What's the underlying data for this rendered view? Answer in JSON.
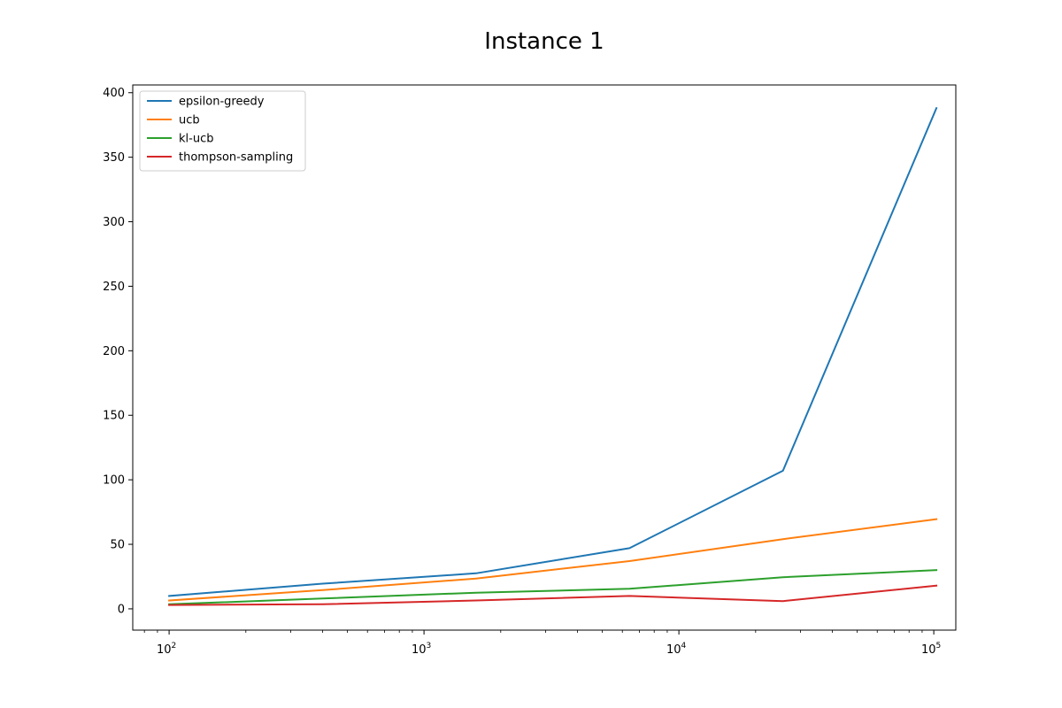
{
  "chart_data": {
    "type": "line",
    "title": "Instance 1",
    "xlabel": "",
    "ylabel": "",
    "xscale": "log",
    "xlim": [
      72,
      122000
    ],
    "ylim": [
      -16.5,
      406
    ],
    "x": [
      100,
      400,
      1600,
      6400,
      25600,
      102400
    ],
    "x_ticks": [
      {
        "value": 100,
        "base": "10",
        "exp": "2"
      },
      {
        "value": 1000,
        "base": "10",
        "exp": "3"
      },
      {
        "value": 10000,
        "base": "10",
        "exp": "4"
      },
      {
        "value": 100000,
        "base": "10",
        "exp": "5"
      }
    ],
    "y_ticks": [
      0,
      50,
      100,
      150,
      200,
      250,
      300,
      350,
      400
    ],
    "grid": false,
    "legend_position": "top-left",
    "series": [
      {
        "name": "epsilon-greedy",
        "color": "#1f77b4",
        "values": [
          10,
          19.5,
          27.5,
          47,
          107,
          388
        ]
      },
      {
        "name": "ucb",
        "color": "#ff7f0e",
        "values": [
          6.5,
          14.5,
          23.5,
          37,
          54,
          69.5
        ]
      },
      {
        "name": "kl-ucb",
        "color": "#2ca02c",
        "values": [
          3.5,
          8,
          12.5,
          15.5,
          24.5,
          30
        ]
      },
      {
        "name": "thompson-sampling",
        "color": "#d62728",
        "values": [
          3,
          3.5,
          6.5,
          10,
          6,
          18
        ]
      }
    ]
  }
}
